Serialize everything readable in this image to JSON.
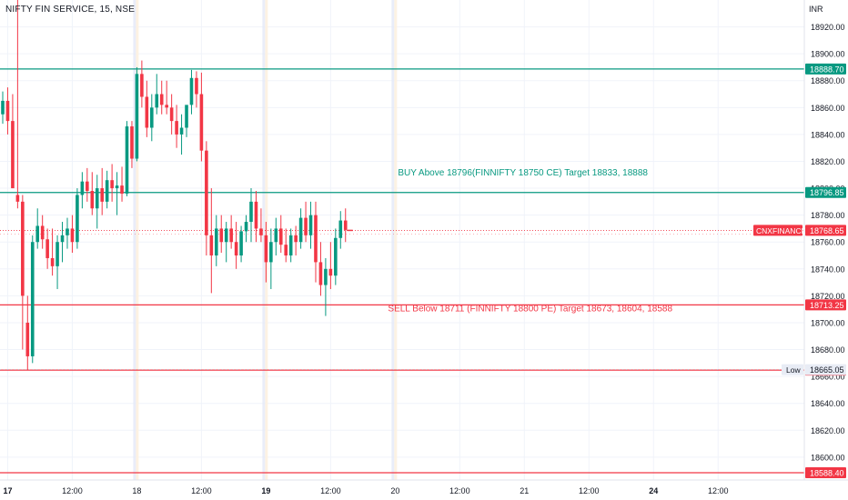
{
  "header": {
    "symbol": "NIFTY FIN SERVICE, 15, NSE",
    "currency": "INR"
  },
  "chart_data": {
    "type": "candlestick",
    "y_axis": {
      "ylim": [
        18583,
        18940
      ],
      "ticks": [
        "18920.00",
        "18900.00",
        "18880.00",
        "18860.00",
        "18840.00",
        "18820.00",
        "18800.00",
        "18780.00",
        "18760.00",
        "18740.00",
        "18720.00",
        "18700.00",
        "18680.00",
        "18660.00",
        "18640.00",
        "18620.00",
        "18600.00"
      ]
    },
    "x_axis": {
      "labels": [
        {
          "text": "17",
          "bar": 1,
          "bold": true
        },
        {
          "text": "12:00",
          "bar": 14
        },
        {
          "text": "18",
          "bar": 27
        },
        {
          "text": "12:00",
          "bar": 40
        },
        {
          "text": "19",
          "bar": 53,
          "bold": true
        },
        {
          "text": "12:00",
          "bar": 66
        },
        {
          "text": "20",
          "bar": 79
        },
        {
          "text": "12:00",
          "bar": 92
        },
        {
          "text": "21",
          "bar": 105
        },
        {
          "text": "12:00",
          "bar": 118
        },
        {
          "text": "24",
          "bar": 131,
          "bold": true
        },
        {
          "text": "12:00",
          "bar": 144
        }
      ]
    },
    "session_breaks": [
      27,
      53,
      79
    ],
    "levels": [
      {
        "value": 18888.7,
        "label": "18888.70",
        "color": "#089981"
      },
      {
        "value": 18796.85,
        "label": "18796.85",
        "color": "#089981"
      },
      {
        "value": 18713.25,
        "label": "18713.25",
        "color": "#f23645"
      },
      {
        "value": 18664.75,
        "label": "18664.75",
        "color": "#f23645"
      },
      {
        "value": 18588.4,
        "label": "18588.40",
        "color": "#f23645"
      }
    ],
    "current_price": {
      "value": 18768.65,
      "label": "18768.65",
      "symbol": "CNXFINANCE",
      "color": "#f23645"
    },
    "low_marker": {
      "value": 18665.05,
      "label": "18665.05",
      "tag": "Low"
    },
    "annotations": [
      {
        "text": "BUY Above 18796(FINNIFTY 18750 CE) Target 18833, 18888",
        "price": 18804,
        "bar": 79,
        "color": "#089981"
      },
      {
        "text": "SELL Below 18711  (FINNIFTY 18800 PE) Target  18673, 18604, 18588",
        "price": 18703,
        "bar": 77,
        "color": "#f23645"
      }
    ],
    "candles": [
      [
        18855,
        18872,
        18848,
        18865
      ],
      [
        18865,
        18875,
        18840,
        18850
      ],
      [
        18850,
        18870,
        18800,
        18800
      ],
      [
        18795,
        18950,
        18785,
        18790
      ],
      [
        18790,
        18795,
        18680,
        18720
      ],
      [
        18700,
        18720,
        18665,
        18675
      ],
      [
        18675,
        18765,
        18670,
        18760
      ],
      [
        18760,
        18785,
        18755,
        18772
      ],
      [
        18772,
        18780,
        18755,
        18762
      ],
      [
        18762,
        18770,
        18740,
        18748
      ],
      [
        18748,
        18770,
        18735,
        18742
      ],
      [
        18742,
        18765,
        18725,
        18760
      ],
      [
        18760,
        18775,
        18745,
        18765
      ],
      [
        18765,
        18778,
        18755,
        18770
      ],
      [
        18770,
        18780,
        18752,
        18760
      ],
      [
        18760,
        18800,
        18755,
        18795
      ],
      [
        18795,
        18812,
        18785,
        18805
      ],
      [
        18805,
        18815,
        18790,
        18798
      ],
      [
        18798,
        18812,
        18780,
        18785
      ],
      [
        18785,
        18810,
        18770,
        18800
      ],
      [
        18800,
        18815,
        18780,
        18790
      ],
      [
        18790,
        18813,
        18785,
        18806
      ],
      [
        18806,
        18818,
        18790,
        18800
      ],
      [
        18800,
        18812,
        18780,
        18802
      ],
      [
        18802,
        18816,
        18790,
        18796
      ],
      [
        18796,
        18850,
        18794,
        18846
      ],
      [
        18846,
        18850,
        18815,
        18822
      ],
      [
        18822,
        18890,
        18820,
        18885
      ],
      [
        18885,
        18895,
        18860,
        18868
      ],
      [
        18868,
        18880,
        18838,
        18845
      ],
      [
        18845,
        18870,
        18835,
        18860
      ],
      [
        18860,
        18885,
        18855,
        18870
      ],
      [
        18870,
        18880,
        18855,
        18862
      ],
      [
        18862,
        18880,
        18855,
        18860
      ],
      [
        18860,
        18870,
        18840,
        18850
      ],
      [
        18850,
        18862,
        18830,
        18840
      ],
      [
        18840,
        18855,
        18825,
        18845
      ],
      [
        18845,
        18860,
        18838,
        18862
      ],
      [
        18862,
        18888,
        18855,
        18882
      ],
      [
        18882,
        18887,
        18860,
        18870
      ],
      [
        18870,
        18886,
        18820,
        18828
      ],
      [
        18828,
        18835,
        18750,
        18765
      ],
      [
        18765,
        18800,
        18722,
        18750
      ],
      [
        18750,
        18780,
        18742,
        18770
      ],
      [
        18770,
        18780,
        18752,
        18760
      ],
      [
        18760,
        18775,
        18745,
        18770
      ],
      [
        18770,
        18780,
        18755,
        18760
      ],
      [
        18760,
        18775,
        18740,
        18750
      ],
      [
        18750,
        18772,
        18745,
        18768
      ],
      [
        18768,
        18780,
        18760,
        18775
      ],
      [
        18775,
        18800,
        18760,
        18790
      ],
      [
        18790,
        18798,
        18760,
        18770
      ],
      [
        18770,
        18785,
        18760,
        18765
      ],
      [
        18765,
        18775,
        18730,
        18745
      ],
      [
        18745,
        18770,
        18725,
        18760
      ],
      [
        18760,
        18778,
        18750,
        18770
      ],
      [
        18770,
        18780,
        18752,
        18758
      ],
      [
        18758,
        18770,
        18745,
        18750
      ],
      [
        18750,
        18770,
        18745,
        18765
      ],
      [
        18765,
        18772,
        18750,
        18760
      ],
      [
        18760,
        18785,
        18755,
        18778
      ],
      [
        18778,
        18790,
        18760,
        18765
      ],
      [
        18765,
        18790,
        18755,
        18780
      ],
      [
        18780,
        18790,
        18730,
        18745
      ],
      [
        18745,
        18760,
        18720,
        18728
      ],
      [
        18728,
        18748,
        18705,
        18740
      ],
      [
        18740,
        18760,
        18725,
        18735
      ],
      [
        18735,
        18770,
        18728,
        18763
      ],
      [
        18763,
        18783,
        18755,
        18776
      ],
      [
        18776,
        18785,
        18760,
        18769
      ]
    ]
  }
}
